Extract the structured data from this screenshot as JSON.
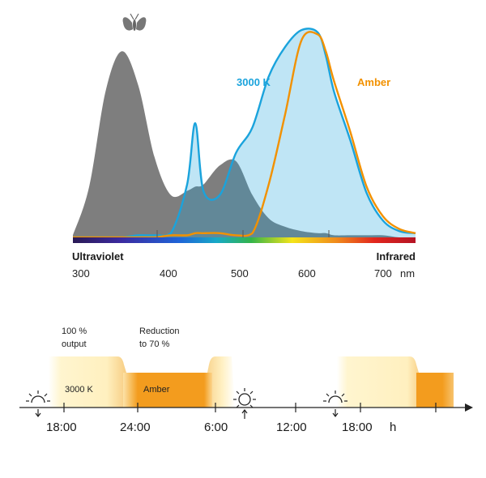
{
  "spectrum": {
    "series_labels": {
      "led3000": "3000 K",
      "amber": "Amber"
    },
    "region_labels": {
      "uv": "Ultraviolet",
      "ir": "Infrared"
    },
    "ticks": [
      "300",
      "400",
      "500",
      "600",
      "700"
    ],
    "unit": "nm",
    "colors": {
      "insect_sensitivity": "#777777",
      "led3000": "#1aa3dc",
      "amber": "#f29100"
    },
    "icons": {
      "top": "moth-icon"
    }
  },
  "chart_data": {
    "type": "line",
    "x": [
      300,
      320,
      340,
      360,
      380,
      400,
      420,
      440,
      450,
      460,
      480,
      500,
      520,
      540,
      560,
      580,
      600,
      610,
      620,
      640,
      660,
      680,
      700,
      720
    ],
    "xlim": [
      300,
      720
    ],
    "ylim": [
      0,
      1
    ],
    "grid": false,
    "legend": "none",
    "series": [
      {
        "values": [
          0.01,
          0.24,
          0.69,
          0.88,
          0.72,
          0.38,
          0.2,
          0.22,
          0.24,
          0.25,
          0.34,
          0.36,
          0.2,
          0.09,
          0.05,
          0.03,
          0.02,
          0.02,
          0.01,
          0.01,
          0.01,
          0.01,
          0.0,
          0.0
        ]
      },
      {
        "name": "3000 K",
        "values": [
          0.0,
          0.0,
          0.0,
          0.0,
          0.01,
          0.01,
          0.02,
          0.25,
          0.54,
          0.22,
          0.2,
          0.4,
          0.52,
          0.76,
          0.9,
          0.98,
          0.97,
          0.86,
          0.69,
          0.46,
          0.21,
          0.08,
          0.03,
          0.02
        ]
      },
      {
        "name": "Amber",
        "values": [
          0.0,
          0.0,
          0.0,
          0.0,
          0.0,
          0.0,
          0.01,
          0.01,
          0.02,
          0.02,
          0.02,
          0.01,
          0.02,
          0.25,
          0.58,
          0.93,
          0.96,
          0.88,
          0.74,
          0.5,
          0.24,
          0.1,
          0.04,
          0.02
        ]
      }
    ]
  },
  "schedule": {
    "annotations": {
      "full": [
        "100 %",
        "output"
      ],
      "reduced": [
        "Reduction",
        "to 70 %"
      ]
    },
    "band_labels": {
      "led3000": "3000 K",
      "amber": "Amber"
    },
    "times": [
      "18:00",
      "24:00",
      "6:00",
      "12:00",
      "18:00"
    ],
    "unit": "h",
    "colors": {
      "warm": "#fff3c6",
      "amber": "#f39c1e"
    },
    "icons": [
      "sunset-icon",
      "sunrise-icon",
      "sunset-icon"
    ]
  }
}
